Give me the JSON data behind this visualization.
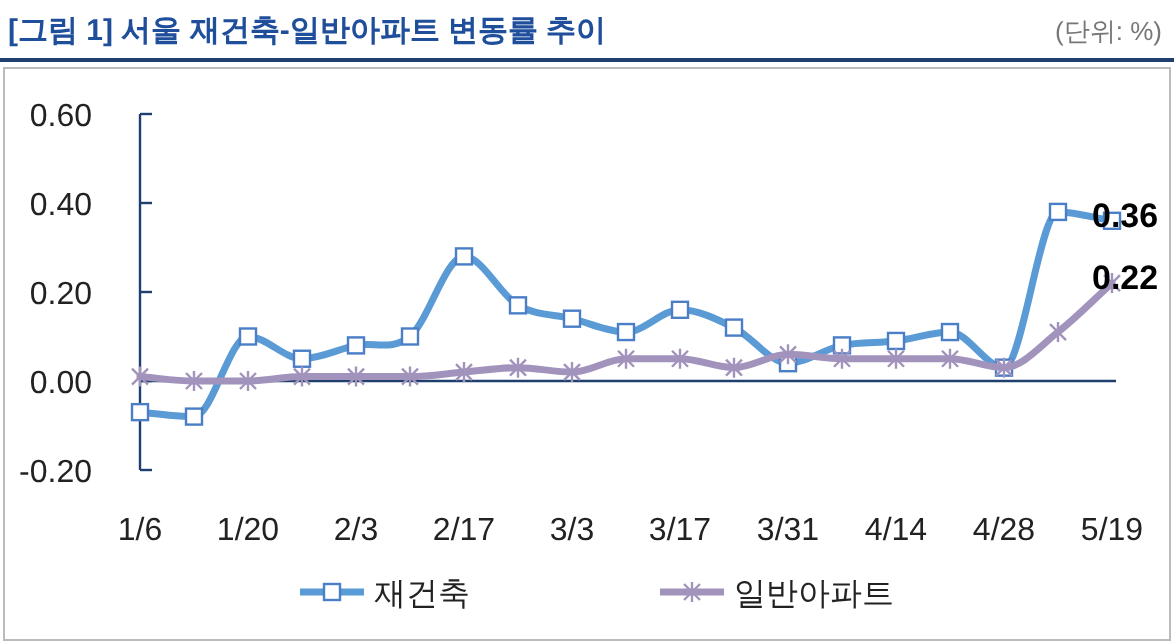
{
  "chart_data": {
    "type": "line",
    "title": "[그림 1] 서울 재건축-일반아파트 변동률 추이",
    "annotations": [
      "(단위: %)"
    ],
    "categories": [
      "1/6",
      null,
      "1/20",
      null,
      "2/3",
      null,
      "2/17",
      null,
      "3/3",
      null,
      "3/17",
      null,
      "3/31",
      null,
      "4/14",
      null,
      "4/28",
      null,
      "5/19"
    ],
    "series": [
      {
        "name": "재건축",
        "color": "#5b9bd5",
        "marker": "square",
        "values": [
          -0.07,
          -0.08,
          0.1,
          0.05,
          0.08,
          0.1,
          0.28,
          0.17,
          0.14,
          0.11,
          0.16,
          0.12,
          0.04,
          0.08,
          0.09,
          0.11,
          0.03,
          0.38,
          0.36
        ],
        "value_labels": [
          null,
          null,
          null,
          null,
          null,
          null,
          null,
          null,
          null,
          null,
          null,
          null,
          null,
          null,
          null,
          null,
          null,
          null,
          "0.36"
        ]
      },
      {
        "name": "일반아파트",
        "color": "#a293bd",
        "marker": "cross",
        "values": [
          0.01,
          0.0,
          0.0,
          0.01,
          0.01,
          0.01,
          0.02,
          0.03,
          0.02,
          0.05,
          0.05,
          0.03,
          0.06,
          0.05,
          0.05,
          0.05,
          0.03,
          0.11,
          0.22
        ],
        "value_labels": [
          null,
          null,
          null,
          null,
          null,
          null,
          null,
          null,
          null,
          null,
          null,
          null,
          null,
          null,
          null,
          null,
          null,
          null,
          "0.22"
        ]
      }
    ],
    "ylim": [
      -0.2,
      0.6
    ],
    "yticks": [
      {
        "value": -0.2,
        "label": "-0.20"
      },
      {
        "value": 0,
        "label": "0.00"
      },
      {
        "value": 0.2,
        "label": "0.20"
      },
      {
        "value": 0.4,
        "label": "0.40"
      },
      {
        "value": 0.6,
        "label": "0.60"
      }
    ],
    "ref_lines": [
      {
        "axis": "y",
        "value": 0,
        "color": "#1f3f6e"
      }
    ],
    "legend": "bottom",
    "grid": false
  }
}
